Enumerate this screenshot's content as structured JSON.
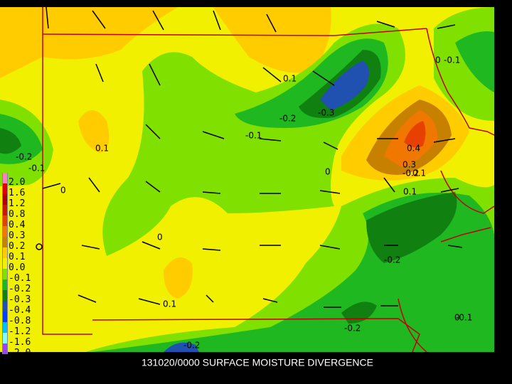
{
  "map": {
    "title": "131020/0000 SURFACE MOISTURE DIVERGENCE",
    "legend": [
      {
        "label": "2.0",
        "color": "#ff80c0"
      },
      {
        "label": "1.6",
        "color": "#e00000"
      },
      {
        "label": "1.2",
        "color": "#b00000"
      },
      {
        "label": "0.8",
        "color": "#c81800"
      },
      {
        "label": "0.4",
        "color": "#e84000"
      },
      {
        "label": "0.3",
        "color": "#f07800"
      },
      {
        "label": "0.2",
        "color": "#c88000"
      },
      {
        "label": "0.1",
        "color": "#ffcc00"
      },
      {
        "label": "0.0",
        "color": "#f0f000"
      },
      {
        "label": "-0.1",
        "color": "#80e000"
      },
      {
        "label": "-0.2",
        "color": "#20b820"
      },
      {
        "label": "-0.3",
        "color": "#108010"
      },
      {
        "label": "-0.4",
        "color": "#2050b0"
      },
      {
        "label": "-0.8",
        "color": "#0040ff"
      },
      {
        "label": "-1.2",
        "color": "#00c0ff"
      },
      {
        "label": "-1.6",
        "color": "#80ffff"
      },
      {
        "label": "-2.0",
        "color": "#a040ff"
      }
    ],
    "contour_labels": [
      "0.1",
      "-0.2",
      "-0.3",
      "-0.1",
      "0.1",
      "-0.2",
      "-0.1",
      "0",
      "0.4",
      "0.3",
      "-0.2",
      "0.1",
      "0.1",
      "0",
      "-0.1",
      "0",
      "-0.2",
      "0.1",
      "-0.2",
      "-0.2",
      "0",
      "-0.1",
      "0"
    ]
  }
}
